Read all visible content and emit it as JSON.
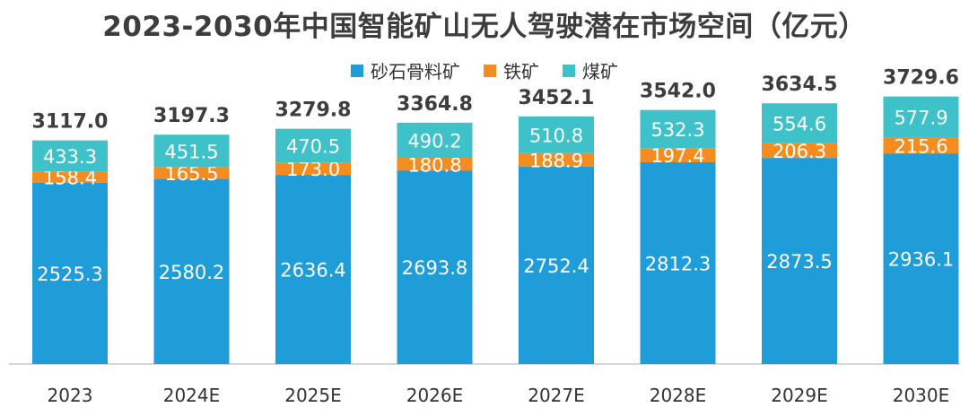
{
  "chart_data": {
    "type": "bar",
    "stacked": true,
    "title": "2023-2030年中国智能矿山无人驾驶潜在市场空间（亿元）",
    "categories": [
      "2023",
      "2024E",
      "2025E",
      "2026E",
      "2027E",
      "2028E",
      "2029E",
      "2030E"
    ],
    "series": [
      {
        "name": "砂石骨料矿",
        "color": "#1f9dd9",
        "values": [
          2525.3,
          2580.2,
          2636.4,
          2693.8,
          2752.4,
          2812.3,
          2873.5,
          2936.1
        ]
      },
      {
        "name": "铁矿",
        "color": "#f58c1f",
        "values": [
          158.4,
          165.5,
          173.0,
          180.8,
          188.9,
          197.4,
          206.3,
          215.6
        ]
      },
      {
        "name": "煤矿",
        "color": "#3fc1c9",
        "values": [
          433.3,
          451.5,
          470.5,
          490.2,
          510.8,
          532.3,
          554.6,
          577.9
        ]
      }
    ],
    "totals": [
      "3117.0",
      "3197.3",
      "3279.8",
      "3364.8",
      "3452.1",
      "3542.0",
      "3634.5",
      "3729.6"
    ],
    "legend_position": "top",
    "grid": false
  }
}
